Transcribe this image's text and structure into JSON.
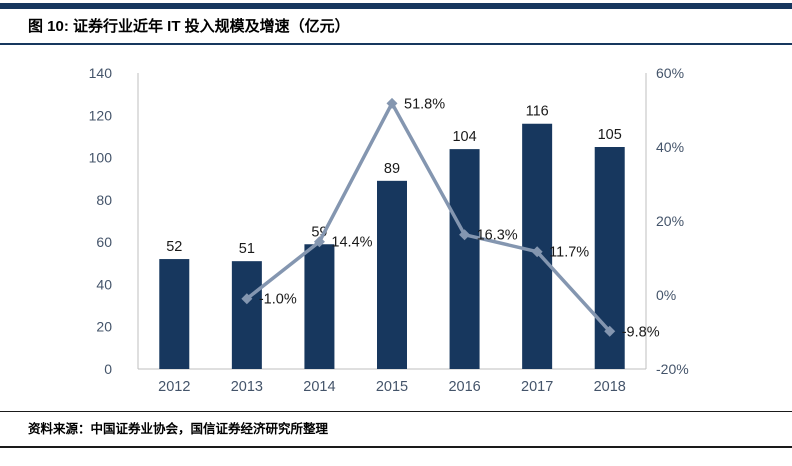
{
  "header": {
    "title": "图 10:  证券行业近年 IT 投入规模及增速（亿元）"
  },
  "footer": {
    "source": "资料来源：中国证券业协会，国信证券经济研究所整理"
  },
  "colors": {
    "bar": "#17375e",
    "line": "#8496b0",
    "rule": "#17375e",
    "axis_line": "#bfbfbf",
    "axis_text": "#44546a",
    "label_text": "#1a1a1a"
  },
  "chart_data": {
    "type": "bar",
    "title": "证券行业近年 IT 投入规模及增速（亿元）",
    "categories": [
      "2012",
      "2013",
      "2014",
      "2015",
      "2016",
      "2017",
      "2018"
    ],
    "series": [
      {
        "name": "IT投入规模（亿元）",
        "type": "bar",
        "axis": "left",
        "values": [
          52,
          51,
          59,
          89,
          104,
          116,
          105
        ],
        "labels": [
          "52",
          "51",
          "59",
          "89",
          "104",
          "116",
          "105"
        ]
      },
      {
        "name": "增速",
        "type": "line",
        "axis": "right",
        "values": [
          null,
          -1.0,
          14.4,
          51.8,
          16.3,
          11.7,
          -9.8
        ],
        "labels": [
          "",
          "-1.0%",
          "14.4%",
          "51.8%",
          "16.3%",
          "11.7%",
          "-9.8%"
        ]
      }
    ],
    "left_axis": {
      "min": 0,
      "max": 140,
      "tick_values": [
        0,
        20,
        40,
        60,
        80,
        100,
        120,
        140
      ],
      "tick_labels": [
        "0",
        "20",
        "40",
        "60",
        "80",
        "100",
        "120",
        "140"
      ]
    },
    "right_axis": {
      "min": -20,
      "max": 60,
      "tick_values": [
        -20,
        0,
        20,
        40,
        60
      ],
      "tick_labels": [
        "-20%",
        "0%",
        "20%",
        "40%",
        "60%"
      ]
    },
    "grid": false,
    "legend": "none"
  }
}
